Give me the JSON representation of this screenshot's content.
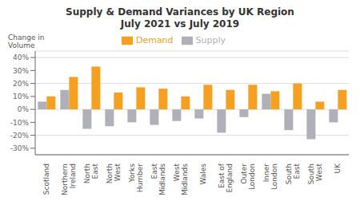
{
  "chart_data": {
    "type": "bar",
    "title": "Supply & Demand Variances by UK Region\nJuly 2021 vs July 2019",
    "y_label": "Change in\nVolume",
    "categories": [
      "Scotland",
      "Northern\nIreland",
      "North\nEast",
      "North\nWest",
      "Yorks\nHumber",
      "East\nMidlands",
      "West\nMidlands",
      "Wales",
      "East of\nEngland",
      "Outer\nLondon",
      "Inner\nLondon",
      "South\nEast",
      "South\nWest",
      "UK"
    ],
    "series": [
      {
        "name": "Supply",
        "color": "#b0b0b8",
        "values": [
          6,
          15,
          -15,
          -13,
          -10,
          -12,
          -9,
          -7,
          -18,
          -6,
          12,
          -16,
          -23,
          -10
        ]
      },
      {
        "name": "Demand",
        "color": "#f5a020",
        "values": [
          10,
          25,
          33,
          13,
          17,
          16,
          10,
          19,
          15,
          19,
          14,
          20,
          6,
          15
        ]
      }
    ],
    "ylim": [
      -35,
      45
    ],
    "yticks": [
      {
        "value": -30,
        "label": "-30%"
      },
      {
        "value": -20,
        "label": "-20%"
      },
      {
        "value": -10,
        "label": "-10%"
      },
      {
        "value": 0,
        "label": "0%"
      },
      {
        "value": 10,
        "label": "10%"
      },
      {
        "value": 20,
        "label": "20%"
      },
      {
        "value": 30,
        "label": "30%"
      },
      {
        "value": 40,
        "label": "40%"
      }
    ],
    "grid": true,
    "legend": "top"
  }
}
